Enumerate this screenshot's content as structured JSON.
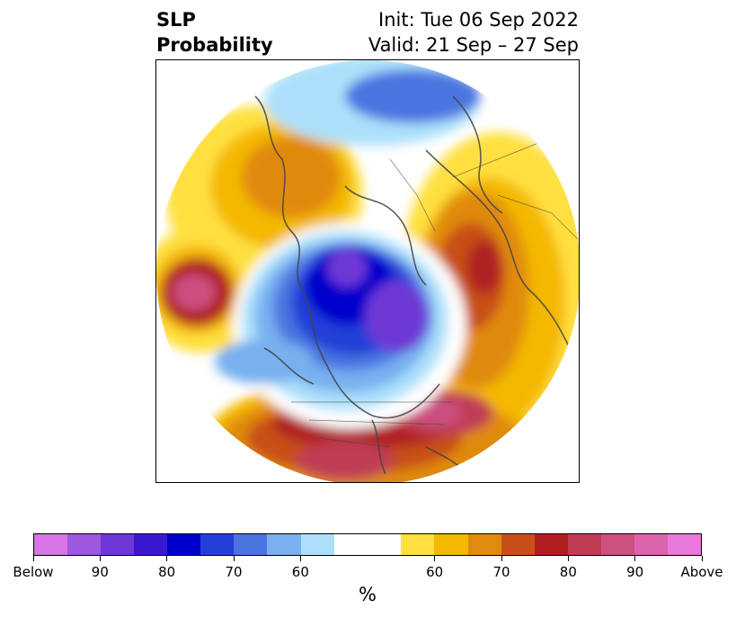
{
  "title": {
    "left_line1": "SLP",
    "left_line2": "Probability",
    "right_line1": "Init: Tue 06 Sep 2022",
    "right_line2": "Valid: 21 Sep – 27 Sep"
  },
  "colorbar": {
    "label": "%",
    "colors": [
      "#d774e6",
      "#9e58e0",
      "#6e38d6",
      "#3a18d0",
      "#0000cc",
      "#2440d8",
      "#4c74e0",
      "#78b0f0",
      "#ace0fa",
      "#ffffff",
      "#ffe040",
      "#f4b800",
      "#e08a10",
      "#c85018",
      "#b02020",
      "#c03c54",
      "#cc5080",
      "#dc64ac",
      "#e878dc"
    ],
    "tick_labels": [
      "Below",
      "90",
      "80",
      "70",
      "60",
      "60",
      "70",
      "80",
      "90",
      "Above"
    ]
  },
  "map": {
    "colors": {
      "deep_blue": "#0000cc",
      "purple": "#6e38d6",
      "ocean_outline": "#444444",
      "below_60": "#ace0fa",
      "above_60": "#ffe040",
      "above_70": "#e08a10",
      "above_80": "#b02020",
      "above_90": "#cc5080"
    }
  }
}
